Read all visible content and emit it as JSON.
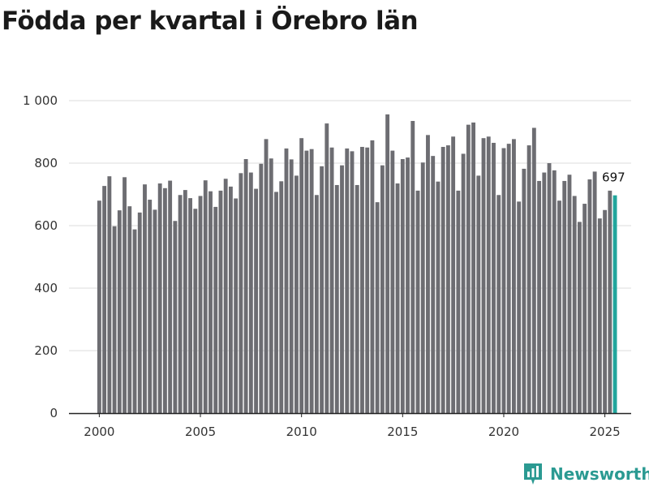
{
  "title": "Födda per kvartal i Örebro län",
  "brand": {
    "name": "Newsworthy",
    "logo_icon": "bar-chart-icon"
  },
  "colors": {
    "bar": "#6d6d72",
    "highlight": "#21a59c",
    "grid": "#dddddd",
    "axis": "#222222",
    "brand": "#2b9a92"
  },
  "chart_data": {
    "type": "bar",
    "title": "Födda per kvartal i Örebro län",
    "xlabel": "",
    "ylabel": "",
    "ylim": [
      0,
      1000
    ],
    "xlim": [
      1998.5,
      2026.3
    ],
    "yticks": [
      0,
      200,
      400,
      600,
      800,
      1000
    ],
    "ytick_labels": [
      "0",
      "200",
      "400",
      "600",
      "800",
      "1 000"
    ],
    "xticks": [
      2000,
      2005,
      2010,
      2015,
      2020,
      2025
    ],
    "xtick_labels": [
      "2000",
      "2005",
      "2010",
      "2015",
      "2020",
      "2025"
    ],
    "start_year": 2000,
    "start_quarter": 1,
    "values": [
      680,
      727,
      758,
      598,
      649,
      755,
      662,
      588,
      642,
      732,
      683,
      651,
      735,
      720,
      744,
      615,
      698,
      714,
      688,
      654,
      695,
      745,
      710,
      660,
      712,
      750,
      725,
      687,
      768,
      813,
      770,
      718,
      798,
      877,
      815,
      708,
      742,
      847,
      812,
      760,
      880,
      840,
      845,
      698,
      790,
      927,
      850,
      730,
      793,
      847,
      838,
      730,
      852,
      850,
      873,
      675,
      793,
      956,
      840,
      735,
      813,
      818,
      935,
      712,
      802,
      890,
      823,
      741,
      852,
      857,
      885,
      712,
      830,
      923,
      930,
      760,
      880,
      885,
      865,
      698,
      848,
      862,
      877,
      677,
      782,
      857,
      913,
      743,
      770,
      800,
      777,
      680,
      743,
      763,
      695,
      612,
      670,
      748,
      773,
      623,
      650,
      712,
      697
    ],
    "highlight_index": 102,
    "highlight_label": "697"
  }
}
